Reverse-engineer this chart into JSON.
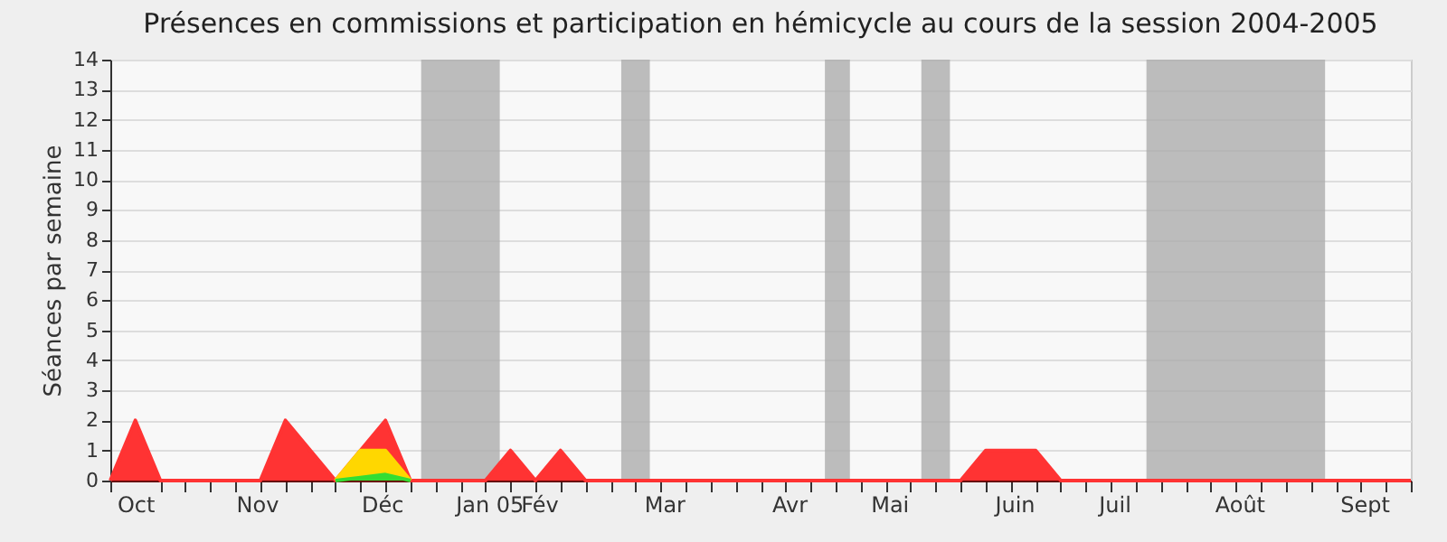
{
  "chart_data": {
    "type": "area",
    "title": "Présences en commissions et participation en hémicycle au cours de la session 2004-2005",
    "ylabel": "Séances par semaine",
    "x": [
      "2004-10-04",
      "2004-10-11",
      "2004-10-18",
      "2004-10-25",
      "2004-11-01",
      "2004-11-08",
      "2004-11-15",
      "2004-11-22",
      "2004-11-29",
      "2004-12-06",
      "2004-12-13",
      "2004-12-20",
      "2004-12-27",
      "2005-01-03",
      "2005-01-10",
      "2005-01-17",
      "2005-01-24",
      "2005-01-31",
      "2005-02-07",
      "2005-02-14",
      "2005-02-21",
      "2005-02-28",
      "2005-03-07",
      "2005-03-14",
      "2005-03-21",
      "2005-03-28",
      "2005-04-04",
      "2005-04-11",
      "2005-04-18",
      "2005-04-25",
      "2005-05-02",
      "2005-05-09",
      "2005-05-16",
      "2005-05-23",
      "2005-05-30",
      "2005-06-06",
      "2005-06-13",
      "2005-06-20",
      "2005-06-27",
      "2005-07-04",
      "2005-07-11",
      "2005-07-18",
      "2005-07-25",
      "2005-08-01",
      "2005-08-08",
      "2005-08-15",
      "2005-08-22",
      "2005-08-29",
      "2005-09-05",
      "2005-09-12",
      "2005-09-19",
      "2005-09-26",
      "2005-10-03"
    ],
    "series": [
      {
        "color": "#ff3333",
        "values": [
          0,
          2,
          0,
          0,
          0,
          0,
          0,
          2,
          1,
          0,
          1,
          2,
          0,
          0,
          0,
          0,
          1,
          0,
          1,
          0,
          0,
          0,
          0,
          0,
          0,
          0,
          0,
          0,
          0,
          0,
          0,
          0,
          0,
          0,
          0,
          1,
          1,
          1,
          0,
          0,
          0,
          0,
          0,
          0,
          0,
          0,
          0,
          0,
          0,
          0,
          0,
          0,
          0
        ]
      },
      {
        "color": "#ffd700",
        "values": [
          null,
          null,
          null,
          null,
          null,
          null,
          null,
          null,
          null,
          0,
          1,
          1,
          0,
          null,
          null,
          null,
          null,
          null,
          null,
          null,
          null,
          null,
          null,
          null,
          null,
          null,
          null,
          null,
          null,
          null,
          null,
          null,
          null,
          null,
          null,
          null,
          null,
          null,
          null,
          null,
          null,
          null,
          null,
          null,
          null,
          null,
          null,
          null,
          null,
          null,
          null,
          null,
          null
        ]
      },
      {
        "color": "#33dd33",
        "values": [
          null,
          null,
          null,
          null,
          null,
          null,
          null,
          null,
          null,
          0,
          0.1,
          0.2,
          0,
          null,
          null,
          null,
          null,
          null,
          null,
          null,
          null,
          null,
          null,
          null,
          null,
          null,
          null,
          null,
          null,
          null,
          null,
          null,
          null,
          null,
          null,
          null,
          null,
          null,
          null,
          null,
          null,
          null,
          null,
          null,
          null,
          null,
          null,
          null,
          null,
          null,
          null,
          null,
          null
        ]
      }
    ],
    "xlim": [
      "2004-10-04",
      "2005-10-03"
    ],
    "xticks": [
      {
        "value": "2004-10-04",
        "label": null
      },
      {
        "value": "2004-10-11",
        "label": "Oct"
      },
      {
        "value": "2004-10-18",
        "label": null
      },
      {
        "value": "2004-10-25",
        "label": null
      },
      {
        "value": "2004-11-01",
        "label": null
      },
      {
        "value": "2004-11-08",
        "label": null
      },
      {
        "value": "2004-11-14",
        "label": "Nov"
      },
      {
        "value": "2004-11-15",
        "label": null
      },
      {
        "value": "2004-11-22",
        "label": null
      },
      {
        "value": "2004-11-29",
        "label": null
      },
      {
        "value": "2004-12-06",
        "label": null
      },
      {
        "value": "2004-12-13",
        "label": null
      },
      {
        "value": "2004-12-19",
        "label": "Déc"
      },
      {
        "value": "2004-12-20",
        "label": null
      },
      {
        "value": "2004-12-27",
        "label": null
      },
      {
        "value": "2005-01-03",
        "label": null
      },
      {
        "value": "2005-01-10",
        "label": null
      },
      {
        "value": "2005-01-17",
        "label": null
      },
      {
        "value": "2005-01-18",
        "label": "Jan 05"
      },
      {
        "value": "2005-01-24",
        "label": null
      },
      {
        "value": "2005-01-31",
        "label": null
      },
      {
        "value": "2005-02-01",
        "label": "Fév"
      },
      {
        "value": "2005-02-07",
        "label": null
      },
      {
        "value": "2005-02-14",
        "label": null
      },
      {
        "value": "2005-02-21",
        "label": null
      },
      {
        "value": "2005-02-28",
        "label": null
      },
      {
        "value": "2005-03-07",
        "label": null
      },
      {
        "value": "2005-03-08",
        "label": "Mar"
      },
      {
        "value": "2005-03-14",
        "label": null
      },
      {
        "value": "2005-03-21",
        "label": null
      },
      {
        "value": "2005-03-28",
        "label": null
      },
      {
        "value": "2005-04-04",
        "label": null
      },
      {
        "value": "2005-04-11",
        "label": null
      },
      {
        "value": "2005-04-12",
        "label": "Avr"
      },
      {
        "value": "2005-04-18",
        "label": null
      },
      {
        "value": "2005-04-25",
        "label": null
      },
      {
        "value": "2005-05-02",
        "label": null
      },
      {
        "value": "2005-05-09",
        "label": null
      },
      {
        "value": "2005-05-10",
        "label": "Mai"
      },
      {
        "value": "2005-05-16",
        "label": null
      },
      {
        "value": "2005-05-23",
        "label": null
      },
      {
        "value": "2005-05-30",
        "label": null
      },
      {
        "value": "2005-06-06",
        "label": null
      },
      {
        "value": "2005-06-13",
        "label": null
      },
      {
        "value": "2005-06-14",
        "label": "Juin"
      },
      {
        "value": "2005-06-20",
        "label": null
      },
      {
        "value": "2005-06-27",
        "label": null
      },
      {
        "value": "2005-07-04",
        "label": null
      },
      {
        "value": "2005-07-11",
        "label": null
      },
      {
        "value": "2005-07-12",
        "label": "Juil"
      },
      {
        "value": "2005-07-18",
        "label": null
      },
      {
        "value": "2005-07-25",
        "label": null
      },
      {
        "value": "2005-08-01",
        "label": null
      },
      {
        "value": "2005-08-08",
        "label": null
      },
      {
        "value": "2005-08-15",
        "label": null
      },
      {
        "value": "2005-08-16",
        "label": "Août"
      },
      {
        "value": "2005-08-22",
        "label": null
      },
      {
        "value": "2005-08-29",
        "label": null
      },
      {
        "value": "2005-09-05",
        "label": null
      },
      {
        "value": "2005-09-12",
        "label": null
      },
      {
        "value": "2005-09-19",
        "label": null
      },
      {
        "value": "2005-09-20",
        "label": "Sept"
      },
      {
        "value": "2005-09-26",
        "label": null
      },
      {
        "value": "2005-10-03",
        "label": null
      }
    ],
    "ylim": [
      0,
      14
    ],
    "yticks": [
      0,
      1,
      2,
      3,
      4,
      5,
      6,
      7,
      8,
      9,
      10,
      11,
      12,
      13,
      14
    ],
    "grid": "y",
    "bands": [
      {
        "axis": "x",
        "from": "2004-12-30",
        "to": "2005-01-21",
        "color": "#a8a8a8"
      },
      {
        "axis": "x",
        "from": "2005-02-24",
        "to": "2005-03-04",
        "color": "#a8a8a8"
      },
      {
        "axis": "x",
        "from": "2005-04-22",
        "to": "2005-04-29",
        "color": "#a8a8a8"
      },
      {
        "axis": "x",
        "from": "2005-05-19",
        "to": "2005-05-27",
        "color": "#a8a8a8"
      },
      {
        "axis": "x",
        "from": "2005-07-21",
        "to": "2005-09-09",
        "color": "#a8a8a8"
      }
    ]
  }
}
